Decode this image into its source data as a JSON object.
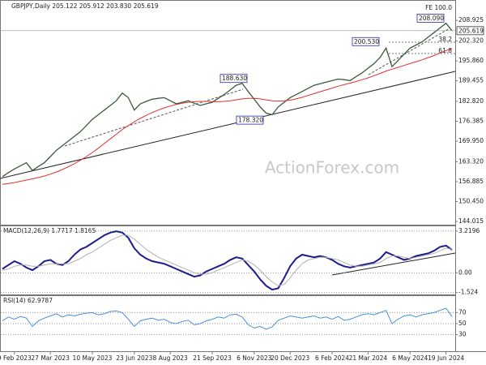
{
  "chart_data": [
    {
      "type": "line",
      "title": "GBPJPY,Daily 205.122 205.912 203.830 205.619",
      "watermark": "ActionForex.com",
      "categories": [
        null,
        null,
        "9 Feb 2023",
        null,
        null,
        null,
        null,
        null,
        "27 Mar 2023",
        null,
        null,
        null,
        null,
        null,
        null,
        "10 May 2023",
        null,
        null,
        null,
        null,
        null,
        null,
        "23 Jun 2023",
        null,
        null,
        null,
        null,
        null,
        "8 Aug 2023",
        null,
        null,
        null,
        null,
        null,
        null,
        "21 Sep 2023",
        null,
        null,
        null,
        null,
        null,
        null,
        "6 Nov 2023",
        null,
        null,
        null,
        null,
        null,
        "20 Dec 2023",
        null,
        null,
        null,
        null,
        null,
        null,
        "6 Feb 2024",
        null,
        null,
        null,
        null,
        null,
        "21 Mar 2024",
        null,
        null,
        null,
        null,
        null,
        null,
        "6 May 2024",
        null,
        null,
        null,
        null,
        null,
        "19 Jun 2024",
        null
      ],
      "series": [
        {
          "name": "Close",
          "color": "#3b5a3b",
          "values": [
            158.5,
            159.8,
            161,
            162,
            163,
            160.5,
            161.8,
            163,
            165,
            167,
            168.5,
            170,
            171.5,
            173,
            175,
            177,
            178.5,
            180,
            181.5,
            183,
            185.5,
            184,
            180,
            182,
            182.8,
            183.5,
            183.8,
            184,
            183,
            182,
            182.5,
            183,
            182.2,
            181.5,
            182,
            182.5,
            183.8,
            185,
            186.5,
            188,
            188.6,
            186,
            183.5,
            181,
            179,
            178.5,
            181,
            182.5,
            184,
            185,
            186,
            187,
            188,
            188.5,
            189,
            189.5,
            190,
            189.8,
            189.5,
            190.8,
            192,
            193.5,
            195,
            197,
            200,
            194,
            196,
            198,
            200,
            201,
            202,
            203.5,
            205,
            206.5,
            208,
            205.619
          ]
        },
        {
          "name": "MA",
          "color": "#e03030",
          "values": [
            156,
            156.3,
            156.6,
            157,
            157.4,
            157.8,
            158.2,
            158.7,
            159.3,
            160,
            160.8,
            161.7,
            162.7,
            163.8,
            165,
            166.3,
            167.7,
            169.2,
            170.7,
            172.2,
            173.7,
            175,
            176.2,
            177.3,
            178.3,
            179.2,
            180,
            180.7,
            181.3,
            181.8,
            182.2,
            182.5,
            182.7,
            182.8,
            182.8,
            182.7,
            182.7,
            182.8,
            183,
            183.3,
            183.6,
            183.8,
            183.8,
            183.6,
            183.3,
            183,
            182.9,
            183,
            183.2,
            183.6,
            184.1,
            184.7,
            185.3,
            185.9,
            186.5,
            187.1,
            187.7,
            188.2,
            188.7,
            189.2,
            189.8,
            190.4,
            191.1,
            191.8,
            192.6,
            193.2,
            193.8,
            194.4,
            195,
            195.6,
            196.2,
            196.9,
            197.6,
            198.4,
            199.2,
            199.8
          ]
        }
      ],
      "annotations": [
        {
          "value": 208.09,
          "label": "208.090"
        },
        {
          "value": 200.53,
          "label": "200.530"
        },
        {
          "value": 188.63,
          "label": "188.630"
        },
        {
          "value": 178.32,
          "label": "178.320"
        },
        {
          "value": 205.619,
          "label": "205.619"
        }
      ],
      "fib_labels": [
        "FE 100.0",
        "38.2",
        "61.8"
      ],
      "ylim": [
        143,
        215
      ],
      "yticks": [
        {
          "value": 208.925,
          "label": "208.925"
        },
        {
          "value": 202.32,
          "label": "202.320"
        },
        {
          "value": 195.86,
          "label": "195.860"
        },
        189.455,
        {
          "value": 182.82,
          "label": "182.820"
        },
        176.385,
        {
          "value": 169.95,
          "label": "169.950"
        },
        {
          "value": 163.32,
          "label": "163.320"
        },
        156.885,
        {
          "value": 150.45,
          "label": "150.450"
        },
        144.015
      ],
      "grid": false
    },
    {
      "type": "line",
      "title": "MACD(12,26,9) 1.7717 1.8165",
      "series": [
        {
          "name": "MACD",
          "color": "#1c1c8f",
          "values": [
            0.3,
            0.6,
            0.9,
            0.7,
            0.4,
            0.2,
            0.5,
            0.9,
            1.0,
            0.7,
            0.6,
            0.9,
            1.4,
            1.8,
            2.0,
            2.3,
            2.6,
            2.9,
            3.1,
            3.2,
            3.1,
            2.7,
            1.9,
            1.4,
            1.1,
            0.9,
            0.8,
            0.7,
            0.5,
            0.3,
            0.1,
            -0.1,
            -0.3,
            -0.2,
            0.1,
            0.3,
            0.5,
            0.7,
            1.0,
            1.2,
            1.1,
            0.6,
            0.1,
            -0.5,
            -1.0,
            -1.3,
            -1.2,
            -0.4,
            0.5,
            1.1,
            1.4,
            1.3,
            1.2,
            1.3,
            1.2,
            1.0,
            0.7,
            0.5,
            0.4,
            0.5,
            0.6,
            0.7,
            0.8,
            1.1,
            1.6,
            1.4,
            1.2,
            1.0,
            1.1,
            1.3,
            1.4,
            1.5,
            1.7,
            2.0,
            2.1,
            1.7717
          ]
        },
        {
          "name": "Signal",
          "color": "#b0b0b0",
          "values": [
            0.2,
            0.3,
            0.5,
            0.6,
            0.6,
            0.5,
            0.5,
            0.6,
            0.7,
            0.7,
            0.7,
            0.7,
            0.9,
            1.1,
            1.4,
            1.6,
            1.9,
            2.2,
            2.5,
            2.7,
            2.9,
            2.9,
            2.6,
            2.2,
            1.8,
            1.5,
            1.2,
            1.0,
            0.8,
            0.6,
            0.4,
            0.2,
            0.0,
            -0.1,
            -0.1,
            0.0,
            0.2,
            0.4,
            0.6,
            0.8,
            1.0,
            0.9,
            0.6,
            0.2,
            -0.3,
            -0.7,
            -1.0,
            -0.9,
            -0.4,
            0.2,
            0.7,
            1.0,
            1.1,
            1.2,
            1.2,
            1.1,
            1.0,
            0.8,
            0.6,
            0.5,
            0.5,
            0.6,
            0.7,
            0.8,
            1.1,
            1.3,
            1.3,
            1.2,
            1.1,
            1.2,
            1.3,
            1.4,
            1.5,
            1.7,
            1.9,
            1.8165
          ]
        }
      ],
      "ylim": [
        -1.67,
        3.59
      ],
      "yticks": [
        3.2196,
        {
          "value": 0,
          "label": "0.00"
        },
        -1.524
      ],
      "grid": true
    },
    {
      "type": "line",
      "title": "RSI(14) 62.9787",
      "series": [
        {
          "name": "RSI",
          "color": "#4a8fd8",
          "values": [
            55,
            62,
            58,
            63,
            60,
            45,
            55,
            60,
            64,
            68,
            62,
            66,
            64,
            67,
            69,
            70,
            66,
            68,
            72,
            73,
            70,
            58,
            45,
            55,
            58,
            60,
            56,
            58,
            52,
            50,
            54,
            56,
            48,
            50,
            55,
            58,
            62,
            60,
            66,
            67,
            62,
            48,
            42,
            45,
            40,
            44,
            56,
            60,
            64,
            62,
            60,
            62,
            64,
            60,
            62,
            58,
            63,
            56,
            58,
            62,
            66,
            68,
            66,
            70,
            74,
            50,
            58,
            64,
            66,
            62,
            66,
            68,
            70,
            74,
            78,
            62.9787
          ]
        }
      ],
      "ylim": [
        0,
        100
      ],
      "yticks": [
        70,
        50,
        30
      ],
      "grid": true
    }
  ]
}
